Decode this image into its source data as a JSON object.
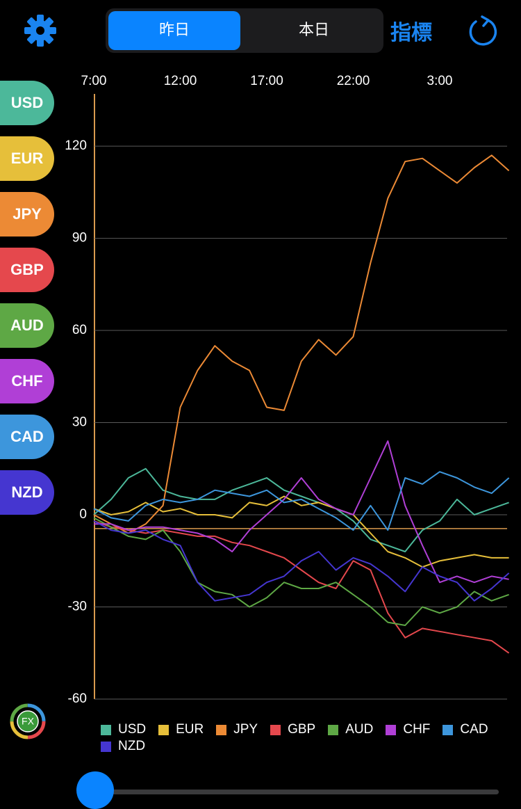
{
  "header": {
    "tabs": [
      "昨日",
      "本日"
    ],
    "indicator": "指標"
  },
  "logo": "FX",
  "chart_data": {
    "type": "line",
    "categories": [
      "7:00",
      null,
      null,
      null,
      null,
      "12:00",
      null,
      null,
      null,
      null,
      "17:00",
      null,
      null,
      null,
      null,
      "22:00",
      null,
      null,
      null,
      null,
      "3:00",
      null,
      null,
      null,
      null
    ],
    "ylim": [
      -60,
      137
    ],
    "yticks": [
      120,
      90,
      60,
      30,
      0,
      -30,
      -60
    ],
    "grid": true,
    "reference_line": {
      "value": -4.5,
      "color": "#d99a4e"
    },
    "series": [
      {
        "name": "USD",
        "color": "#4cb89a",
        "values": [
          0,
          5,
          12,
          15,
          8,
          6,
          5,
          5,
          8,
          10,
          12,
          8,
          6,
          4,
          2,
          -2,
          -8,
          -10,
          -12,
          -5,
          -2,
          5,
          0,
          2,
          4
        ]
      },
      {
        "name": "EUR",
        "color": "#e6bf3a",
        "values": [
          2,
          0,
          1,
          4,
          1,
          2,
          0,
          0,
          -1,
          4,
          3,
          6,
          3,
          4,
          2,
          0,
          -6,
          -12,
          -14,
          -17,
          -15,
          -14,
          -13,
          -14,
          -14
        ]
      },
      {
        "name": "JPY",
        "color": "#ec8a35",
        "values": [
          0,
          -3,
          -6,
          -3,
          3,
          35,
          47,
          55,
          50,
          47,
          35,
          34,
          50,
          57,
          52,
          58,
          82,
          103,
          115,
          116,
          112,
          108,
          113,
          117,
          112
        ]
      },
      {
        "name": "GBP",
        "color": "#e5484d",
        "values": [
          -2,
          -4,
          -5,
          -6,
          -5,
          -6,
          -7,
          -7,
          -9,
          -10,
          -12,
          -14,
          -18,
          -22,
          -24,
          -15,
          -18,
          -32,
          -40,
          -37,
          -38,
          -39,
          -40,
          -41,
          -45
        ]
      },
      {
        "name": "AUD",
        "color": "#5ea845",
        "values": [
          -1,
          -4,
          -7,
          -8,
          -5,
          -12,
          -22,
          -25,
          -26,
          -30,
          -27,
          -22,
          -24,
          -24,
          -22,
          -26,
          -30,
          -35,
          -36,
          -30,
          -32,
          -30,
          -25,
          -28,
          -26
        ]
      },
      {
        "name": "CHF",
        "color": "#b03fd6",
        "values": [
          -3,
          -3,
          -5,
          -4,
          -4,
          -5,
          -6,
          -8,
          -12,
          -5,
          0,
          5,
          12,
          5,
          2,
          0,
          12,
          24,
          3,
          -10,
          -22,
          -20,
          -22,
          -20,
          -21
        ]
      },
      {
        "name": "CAD",
        "color": "#3d96dc",
        "values": [
          2,
          -1,
          -2,
          3,
          5,
          4,
          5,
          8,
          7,
          6,
          8,
          4,
          5,
          2,
          -1,
          -5,
          3,
          -5,
          12,
          10,
          14,
          12,
          9,
          7,
          12
        ]
      },
      {
        "name": "NZD",
        "color": "#4536d0",
        "values": [
          -2,
          -5,
          -6,
          -5,
          -8,
          -10,
          -22,
          -28,
          -27,
          -26,
          -22,
          -20,
          -15,
          -12,
          -18,
          -14,
          -16,
          -20,
          -25,
          -17,
          -20,
          -22,
          -28,
          -24,
          -19
        ]
      }
    ]
  }
}
